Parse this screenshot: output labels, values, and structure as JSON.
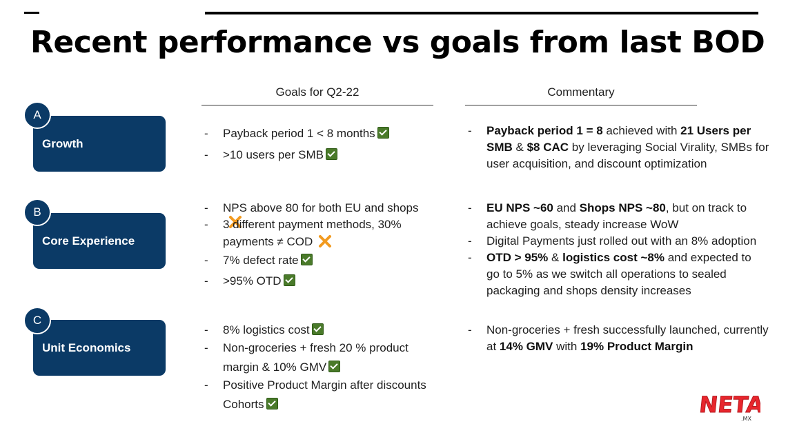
{
  "title": "Recent performance vs goals from last BOD",
  "columns": {
    "goals": "Goals for Q2-22",
    "commentary": "Commentary"
  },
  "sections": [
    {
      "letter": "A",
      "label": "Growth"
    },
    {
      "letter": "B",
      "label": "Core Experience"
    },
    {
      "letter": "C",
      "label": "Unit Economics"
    }
  ],
  "goals": {
    "growth": [
      "Payback period 1 < 8  months",
      ">10 users per SMB"
    ],
    "core": [
      "NPS above 80 for both EU and shops",
      "3 different payment methods, 30%",
      "payments ≠ COD",
      "7% defect rate",
      ">95% OTD"
    ],
    "unit": [
      "8% logistics cost",
      "Non-groceries + fresh 20 % product",
      "margin & 10% GMV",
      "Positive Product Margin after discounts",
      "Cohorts"
    ]
  },
  "commentary": {
    "growth": {
      "b1": "Payback period 1 = 8",
      "t1": "  achieved with ",
      "b2": "21 Users per SMB",
      "t2": " & ",
      "b3": "$8 CAC",
      "t3": "  by leveraging Social Virality,  SMBs for user acquisition, and discount optimization"
    },
    "core": {
      "b1": "EU NPS ~60",
      "t1": " and ",
      "b2": "Shops NPS ~80",
      "t2": ", but on track to achieve goals, steady increase WoW",
      "line2": "Digital Payments just rolled out with an 8% adoption",
      "b3": "OTD > 95%",
      "t3": " & ",
      "b4": "logistics cost ~8%",
      "t4": " and expected to go to 5% as we switch all operations to sealed packaging and shops density increases"
    },
    "unit": {
      "t1": "Non-groceries + fresh successfully launched, currently at ",
      "b1": "14% GMV",
      "t2": " with ",
      "b2": "19% Product Margin"
    }
  },
  "dash": "-",
  "logo": {
    "text": "NETA",
    "suffix": ".MX",
    "color": "#e8262d"
  },
  "colors": {
    "accent": "#0b3a66",
    "check": "#4a7a2a",
    "cross": "#f29a1f"
  }
}
